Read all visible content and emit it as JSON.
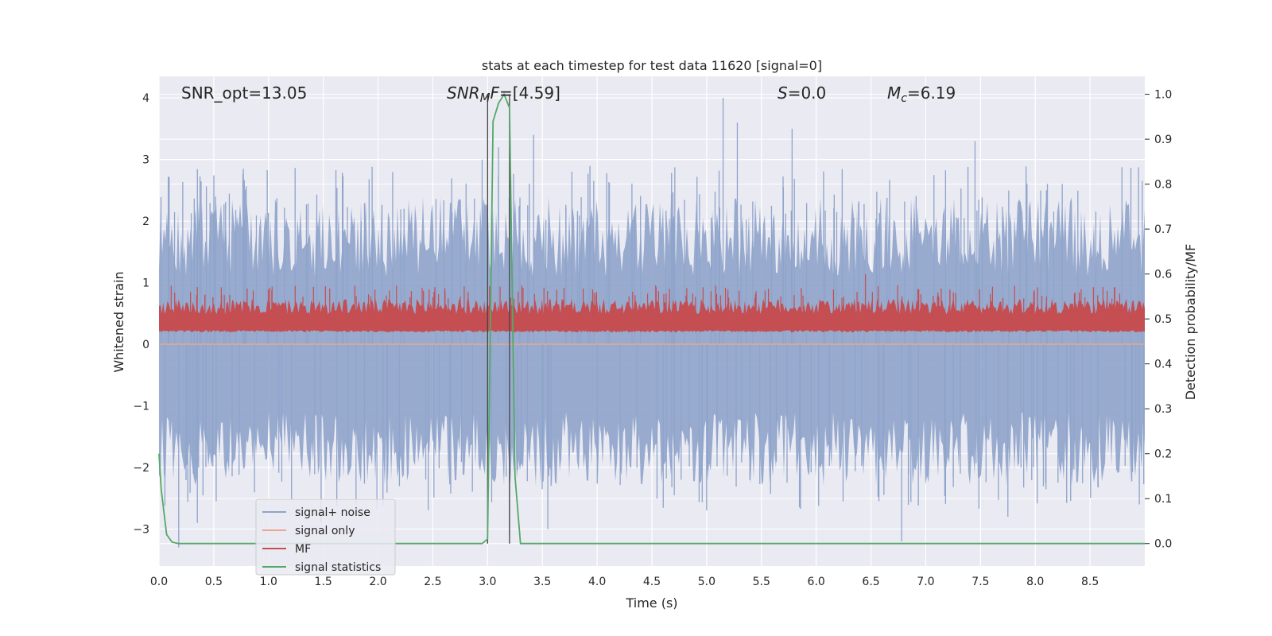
{
  "chart_data": {
    "type": "line",
    "title": "stats at each timestep for test data 11620 [signal=0]",
    "xlabel": "Time (s)",
    "ylabel": "Whitened strain",
    "ylabel_right": "Detection probability/MF",
    "xlim": [
      0.0,
      9.0
    ],
    "ylim": [
      -3.6,
      4.35
    ],
    "ylim_right": [
      -0.05,
      1.04
    ],
    "xticks": [
      0.0,
      0.5,
      1.0,
      1.5,
      2.0,
      2.5,
      3.0,
      3.5,
      4.0,
      4.5,
      5.0,
      5.5,
      6.0,
      6.5,
      7.0,
      7.5,
      8.0,
      8.5
    ],
    "xtick_labels": [
      "0.0",
      "0.5",
      "1.0",
      "1.5",
      "2.0",
      "2.5",
      "3.0",
      "3.5",
      "4.0",
      "4.5",
      "5.0",
      "5.5",
      "6.0",
      "6.5",
      "7.0",
      "7.5",
      "8.0",
      "8.5"
    ],
    "yticks": [
      -3,
      -2,
      -1,
      0,
      1,
      2,
      3,
      4
    ],
    "ytick_labels": [
      "−3",
      "−2",
      "−1",
      "0",
      "1",
      "2",
      "3",
      "4"
    ],
    "yticks_right": [
      0.0,
      0.1,
      0.2,
      0.3,
      0.4,
      0.5,
      0.6,
      0.7,
      0.8,
      0.9,
      1.0
    ],
    "ytick_labels_right": [
      "0.0",
      "0.1",
      "0.2",
      "0.3",
      "0.4",
      "0.5",
      "0.6",
      "0.7",
      "0.8",
      "0.9",
      "1.0"
    ],
    "annotations": [
      {
        "id": "snr-opt",
        "text": "SNR_opt=13.05",
        "x": 0.2
      },
      {
        "id": "snr-mf",
        "text": "SNR_MF=[4.59]",
        "x": 2.6
      },
      {
        "id": "s-value",
        "text": "S=0.0",
        "x": 5.6
      },
      {
        "id": "mc-value",
        "text": "M_c=6.19",
        "x": 6.6
      }
    ],
    "vlines": [
      3.0,
      3.2
    ],
    "legend": {
      "placement": "lower-left",
      "entries": [
        {
          "label": "signal+ noise",
          "color": "#8fa4cb"
        },
        {
          "label": "signal only",
          "color": "#eba58b"
        },
        {
          "label": "MF",
          "color": "#c44e52"
        },
        {
          "label": "signal statistics",
          "color": "#55a868"
        }
      ]
    },
    "series": [
      {
        "name": "signal+ noise",
        "axis": "left",
        "color": "#8fa4cb",
        "description": "dense whitened noise trace, roughly -2.5 to 2.8, peaks to 4.0 near t=5.15",
        "peaks": [
          {
            "x": 0.18,
            "y": -3.3
          },
          {
            "x": 0.35,
            "y": -2.9
          },
          {
            "x": 1.48,
            "y": -2.9
          },
          {
            "x": 2.95,
            "y": 3.0
          },
          {
            "x": 3.1,
            "y": 3.2
          },
          {
            "x": 3.2,
            "y": -3.1
          },
          {
            "x": 3.42,
            "y": 3.4
          },
          {
            "x": 3.55,
            "y": -3.0
          },
          {
            "x": 5.15,
            "y": 4.0
          },
          {
            "x": 5.28,
            "y": 3.6
          },
          {
            "x": 5.78,
            "y": 3.5
          },
          {
            "x": 6.78,
            "y": -3.2
          },
          {
            "x": 7.45,
            "y": 3.3
          },
          {
            "x": 7.75,
            "y": -2.8
          },
          {
            "x": 8.95,
            "y": -2.6
          }
        ]
      },
      {
        "name": "signal only",
        "axis": "left",
        "color": "#eba58b",
        "values_description": "flat at 0.0 across 0–9 s"
      },
      {
        "name": "MF",
        "axis": "right",
        "color": "#c44e52",
        "values_description": "noisy band between ~0.47 and ~0.55, peaks near 0.6 at t=6.45"
      },
      {
        "name": "signal statistics",
        "axis": "right",
        "color": "#55a868",
        "x": [
          0.0,
          0.02,
          0.07,
          0.12,
          0.18,
          0.25,
          2.95,
          3.0,
          3.05,
          3.1,
          3.15,
          3.2,
          3.25,
          3.3,
          3.35,
          3.4,
          9.0
        ],
        "values": [
          0.2,
          0.12,
          0.02,
          0.003,
          0.0,
          0.0,
          0.0,
          0.01,
          0.94,
          0.98,
          1.0,
          0.97,
          0.15,
          0.0,
          0.0,
          0.0,
          0.0
        ]
      }
    ]
  }
}
